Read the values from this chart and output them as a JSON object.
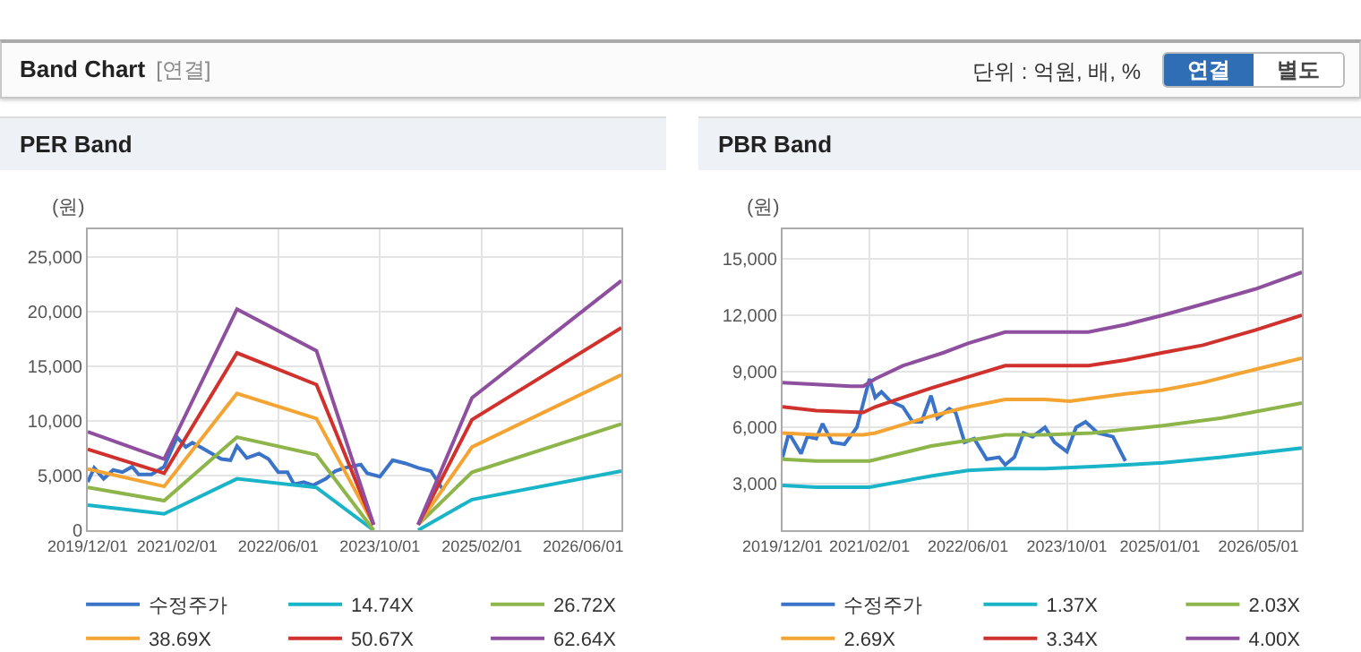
{
  "chart_data": [
    {
      "type": "other",
      "title": "Band Chart",
      "annotations": [
        "[연결]",
        "단위 : 억원, 배, %",
        "연결",
        "별도"
      ]
    },
    {
      "type": "line",
      "title": "PER Band",
      "ylabel": "(원)",
      "grid": true,
      "legend": "bottom",
      "marker": "none",
      "line_style": "solid",
      "xlim": [
        "2019-12-01",
        "2026-12-01"
      ],
      "xticks": [
        {
          "value": "2019-12-01",
          "label": "2019/12/01"
        },
        {
          "value": "2021-02-01",
          "label": "2021/02/01"
        },
        {
          "value": "2022-06-01",
          "label": "2022/06/01"
        },
        {
          "value": "2023-10-01",
          "label": "2023/10/01"
        },
        {
          "value": "2025-02-01",
          "label": "2025/02/01"
        },
        {
          "value": "2026-06-01",
          "label": "2026/06/01"
        }
      ],
      "ylim": [
        0,
        27500
      ],
      "yticks": [
        0,
        {
          "value": 5000,
          "label": "5,000"
        },
        {
          "value": 10000,
          "label": "10,000"
        },
        {
          "value": 15000,
          "label": "15,000"
        },
        {
          "value": 20000,
          "label": "20,000"
        },
        {
          "value": 25000,
          "label": "25,000"
        }
      ],
      "series": [
        {
          "name": "수정주가",
          "color": "#3a73c8",
          "x": [
            "2019-12-01",
            "2020-01-01",
            "2020-02-15",
            "2020-04-01",
            "2020-05-15",
            "2020-07-01",
            "2020-08-01",
            "2020-10-01",
            "2020-12-01",
            "2021-02-01",
            "2021-03-15",
            "2021-04-15",
            "2021-06-01",
            "2021-09-01",
            "2021-10-15",
            "2021-11-15",
            "2022-01-01",
            "2022-03-01",
            "2022-04-15",
            "2022-06-01",
            "2022-07-15",
            "2022-08-15",
            "2022-10-01",
            "2022-11-15",
            "2023-01-15",
            "2023-03-01",
            "2023-04-15",
            "2023-07-01",
            "2023-08-01",
            "2023-10-01",
            "2023-12-01",
            "2024-02-01",
            "2024-04-01",
            "2024-06-01",
            "2024-08-01"
          ],
          "values": [
            4400,
            5700,
            4700,
            5500,
            5300,
            5800,
            5100,
            5100,
            5800,
            8500,
            7600,
            8000,
            7500,
            6500,
            6400,
            7700,
            6600,
            7000,
            6500,
            5300,
            5300,
            4200,
            4400,
            4100,
            4700,
            5400,
            5700,
            6000,
            5200,
            4900,
            6400,
            6100,
            5700,
            5400,
            3600
          ]
        },
        {
          "name": "14.74X",
          "color": "#1ab4c8",
          "x": [
            "2019-12-01",
            "2020-12-01",
            "2021-11-15",
            "2022-12-01",
            "2023-09-01",
            "2023-12-01",
            "2024-04-01",
            "2024-12-15",
            "2026-12-01"
          ],
          "values": [
            2300,
            1500,
            4700,
            3900,
            0,
            null,
            0,
            2800,
            5400
          ]
        },
        {
          "name": "26.72X",
          "color": "#8db54a",
          "x": [
            "2019-12-01",
            "2020-12-01",
            "2021-11-15",
            "2022-12-01",
            "2023-09-01",
            "2023-12-01",
            "2024-04-01",
            "2024-12-15",
            "2026-12-01"
          ],
          "values": [
            3900,
            2700,
            8500,
            6900,
            0,
            null,
            500,
            5300,
            9700
          ]
        },
        {
          "name": "38.69X",
          "color": "#f4a433",
          "x": [
            "2019-12-01",
            "2020-12-01",
            "2021-11-15",
            "2022-12-01",
            "2023-09-01",
            "2023-12-01",
            "2024-04-01",
            "2024-12-15",
            "2026-12-01"
          ],
          "values": [
            5600,
            4000,
            12500,
            10200,
            500,
            null,
            500,
            7600,
            14200
          ]
        },
        {
          "name": "50.67X",
          "color": "#d0312d",
          "x": [
            "2019-12-01",
            "2020-12-01",
            "2021-11-15",
            "2022-12-01",
            "2023-09-01",
            "2023-12-01",
            "2024-04-01",
            "2024-12-15",
            "2026-12-01"
          ],
          "values": [
            7400,
            5200,
            16200,
            13300,
            500,
            null,
            500,
            10100,
            18500
          ]
        },
        {
          "name": "62.64X",
          "color": "#8e4f9f",
          "x": [
            "2019-12-01",
            "2020-12-01",
            "2021-11-15",
            "2022-12-01",
            "2023-09-01",
            "2023-12-01",
            "2024-04-01",
            "2024-12-15",
            "2026-12-01"
          ],
          "values": [
            9000,
            6500,
            20200,
            16400,
            500,
            null,
            500,
            12100,
            22800
          ]
        }
      ]
    },
    {
      "type": "line",
      "title": "PBR Band",
      "ylabel": "(원)",
      "grid": true,
      "legend": "bottom",
      "marker": "none",
      "line_style": "solid",
      "xlim": [
        "2019-12-01",
        "2026-12-01"
      ],
      "xticks": [
        {
          "value": "2019-12-01",
          "label": "2019/12/01"
        },
        {
          "value": "2021-02-01",
          "label": "2021/02/01"
        },
        {
          "value": "2022-06-01",
          "label": "2022/06/01"
        },
        {
          "value": "2023-10-01",
          "label": "2023/10/01"
        },
        {
          "value": "2025-01-01",
          "label": "2025/01/01"
        },
        {
          "value": "2026-05-01",
          "label": "2026/05/01"
        }
      ],
      "ylim": [
        500,
        16600
      ],
      "yticks": [
        {
          "value": 3000,
          "label": "3,000"
        },
        {
          "value": 6000,
          "label": "6,000"
        },
        {
          "value": 9000,
          "label": "9,000"
        },
        {
          "value": 12000,
          "label": "12,000"
        },
        {
          "value": 15000,
          "label": "15,000"
        }
      ],
      "series": [
        {
          "name": "수정주가",
          "color": "#3a73c8",
          "x": [
            "2019-12-01",
            "2020-01-01",
            "2020-03-01",
            "2020-04-01",
            "2020-05-15",
            "2020-06-15",
            "2020-08-01",
            "2020-10-01",
            "2020-12-01",
            "2021-02-01",
            "2021-03-01",
            "2021-04-01",
            "2021-05-15",
            "2021-07-15",
            "2021-09-01",
            "2021-10-15",
            "2021-12-01",
            "2022-01-01",
            "2022-03-01",
            "2022-04-01",
            "2022-05-15",
            "2022-07-01",
            "2022-09-01",
            "2022-11-01",
            "2022-12-01",
            "2023-01-15",
            "2023-03-01",
            "2023-04-15",
            "2023-06-15",
            "2023-08-01",
            "2023-10-01",
            "2023-11-15",
            "2024-01-01",
            "2024-03-01",
            "2024-05-15",
            "2024-07-15"
          ],
          "values": [
            4400,
            5700,
            4600,
            5500,
            5400,
            6200,
            5200,
            5100,
            6000,
            8600,
            7600,
            7900,
            7400,
            7100,
            6300,
            6300,
            7700,
            6500,
            7000,
            6800,
            5200,
            5400,
            4300,
            4400,
            4000,
            4400,
            5700,
            5500,
            6000,
            5200,
            4700,
            6000,
            6300,
            5700,
            5500,
            4200
          ]
        },
        {
          "name": "1.37X",
          "color": "#1ab4c8",
          "x": [
            "2019-12-01",
            "2020-05-15",
            "2021-02-01",
            "2021-12-01",
            "2022-06-01",
            "2022-12-01",
            "2023-06-15",
            "2024-02-01",
            "2025-01-15",
            "2025-11-01",
            "2026-12-01"
          ],
          "values": [
            2900,
            2800,
            2800,
            3400,
            3700,
            3800,
            3800,
            3900,
            4100,
            4400,
            4900
          ]
        },
        {
          "name": "2.03X",
          "color": "#8db54a",
          "x": [
            "2019-12-01",
            "2020-05-15",
            "2021-02-01",
            "2021-12-01",
            "2022-06-01",
            "2022-12-01",
            "2023-06-15",
            "2024-02-01",
            "2025-01-15",
            "2025-11-01",
            "2026-12-01"
          ],
          "values": [
            4300,
            4200,
            4200,
            5000,
            5300,
            5600,
            5600,
            5700,
            6100,
            6500,
            7300
          ]
        },
        {
          "name": "2.69X",
          "color": "#f4a433",
          "x": [
            "2019-12-01",
            "2020-05-15",
            "2021-01-01",
            "2021-03-01",
            "2021-12-01",
            "2022-06-01",
            "2022-12-01",
            "2023-06-15",
            "2023-10-15",
            "2024-07-15",
            "2025-01-15",
            "2025-08-01",
            "2026-04-15",
            "2026-12-01"
          ],
          "values": [
            5700,
            5600,
            5600,
            5700,
            6600,
            7100,
            7500,
            7500,
            7400,
            7800,
            8000,
            8400,
            9100,
            9700
          ]
        },
        {
          "name": "3.34X",
          "color": "#d0312d",
          "x": [
            "2019-12-01",
            "2020-05-15",
            "2021-01-01",
            "2021-03-01",
            "2021-12-01",
            "2022-06-01",
            "2022-12-01",
            "2023-06-15",
            "2024-01-15",
            "2024-07-15",
            "2025-01-15",
            "2025-08-01",
            "2026-04-15",
            "2026-12-01"
          ],
          "values": [
            7100,
            6900,
            6800,
            7100,
            8100,
            8700,
            9300,
            9300,
            9300,
            9600,
            10000,
            10400,
            11200,
            12000
          ]
        },
        {
          "name": "4.00X",
          "color": "#8e4f9f",
          "x": [
            "2019-12-01",
            "2020-11-01",
            "2021-01-01",
            "2021-03-01",
            "2021-07-15",
            "2022-02-01",
            "2022-06-01",
            "2022-12-01",
            "2023-06-15",
            "2024-01-15",
            "2024-07-15",
            "2025-01-15",
            "2025-08-01",
            "2026-04-15",
            "2026-12-01"
          ],
          "values": [
            8400,
            8200,
            8200,
            8600,
            9300,
            10000,
            10500,
            11100,
            11100,
            11100,
            11500,
            12000,
            12600,
            13400,
            14300
          ]
        }
      ]
    }
  ]
}
